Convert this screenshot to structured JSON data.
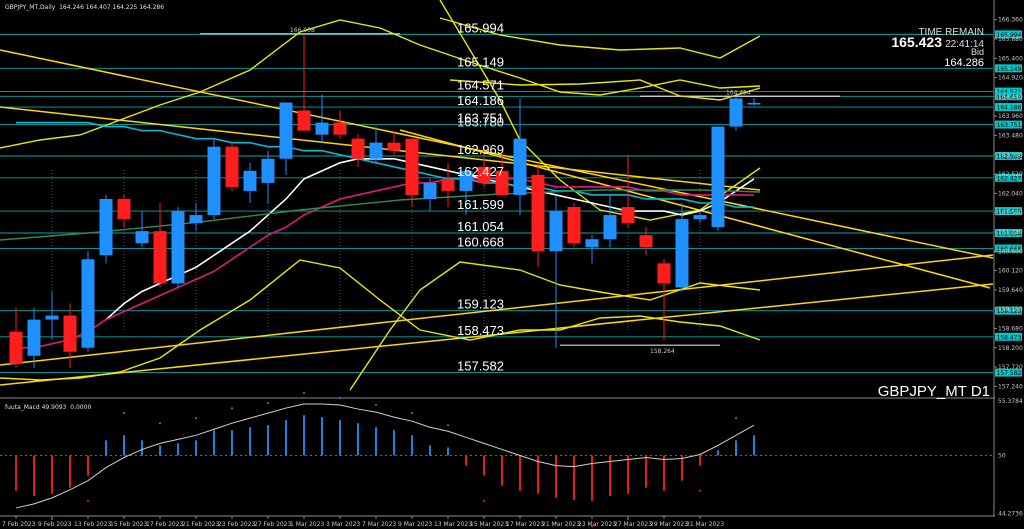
{
  "header": {
    "symbol_line": "GBPJPY_MT,Daily",
    "ohlc": "164.246 164.407 164.225 164.286",
    "indicator_name": "fuuta_Macd 49.9093",
    "indicator_val": "0.0000"
  },
  "info_panel": {
    "time_remain_label": "TIME REMAIN",
    "time_remain_value": "22:41:14",
    "big_price": "165.423",
    "bid_label": "Bid",
    "bid_value": "164.286"
  },
  "symbol_label": "GBPJPY_MT D1",
  "colors": {
    "bull": "#1e90ff",
    "bear": "#ff1e1e",
    "level_line": "#00c8c8",
    "trend": "#ffd700",
    "bollinger": "#e8e800",
    "ma_white": "#ffffff",
    "ma_pink": "#e0197f",
    "ma_cyan": "#00bcd4",
    "ma_green": "#2e8b57"
  },
  "chart_data": {
    "type": "candlestick",
    "price_axis_ticks": [
      "166.360",
      "165.880",
      "165.400",
      "164.920",
      "164.440",
      "163.960",
      "163.480",
      "163.000",
      "162.520",
      "162.040",
      "161.560",
      "161.080",
      "160.600",
      "160.120",
      "159.640",
      "159.160",
      "158.680",
      "158.200",
      "157.720",
      "157.240"
    ],
    "price_range": [
      157.0,
      166.6
    ],
    "axis_tags": [
      "165.994",
      "165.149",
      "164.571",
      "164.454",
      "164.186",
      "163.751",
      "162.969",
      "162.427",
      "161.599",
      "161.054",
      "160.668",
      "159.123",
      "158.473",
      "157.582"
    ],
    "level_labels": [
      {
        "label": "165.994",
        "price": 165.994
      },
      {
        "label": "165.149",
        "price": 165.149
      },
      {
        "label": "164.571",
        "price": 164.571
      },
      {
        "label": "164.186",
        "price": 164.186
      },
      {
        "label": "163.751",
        "price": 163.751
      },
      {
        "label": "162.969",
        "price": 162.969
      },
      {
        "label": "162.427",
        "price": 162.427
      },
      {
        "label": "161.599",
        "price": 161.599
      },
      {
        "label": "161.054",
        "price": 161.054
      },
      {
        "label": "160.668",
        "price": 160.668
      },
      {
        "label": "159.123",
        "price": 159.123
      },
      {
        "label": "158.473",
        "price": 158.473
      },
      {
        "label": "157.582",
        "price": 157.582
      }
    ],
    "level_extra_label": "163.780",
    "annotations": [
      {
        "label": "166.008",
        "price": 166.008
      },
      {
        "label": "164.454",
        "price": 164.454
      },
      {
        "label": "158.264",
        "price": 158.264
      }
    ],
    "date_labels": [
      "7 Feb 2023",
      "9 Feb 2023",
      "13 Feb 2023",
      "15 Feb 2023",
      "17 Feb 2023",
      "21 Feb 2023",
      "23 Feb 2023",
      "27 Feb 2023",
      "1 Mar 2023",
      "3 Mar 2023",
      "7 Mar 2023",
      "9 Mar 2023",
      "13 Mar 2023",
      "15 Mar 2023",
      "17 Mar 2023",
      "21 Mar 2023",
      "23 Mar 2023",
      "27 Mar 2023",
      "29 Mar 2023",
      "31 Mar 2023"
    ],
    "candles": [
      {
        "o": 158.6,
        "h": 159.2,
        "l": 157.7,
        "c": 157.8
      },
      {
        "o": 158.0,
        "h": 159.2,
        "l": 157.7,
        "c": 158.9
      },
      {
        "o": 158.9,
        "h": 159.6,
        "l": 158.4,
        "c": 159.0
      },
      {
        "o": 159.0,
        "h": 159.3,
        "l": 157.7,
        "c": 158.1
      },
      {
        "o": 158.2,
        "h": 160.6,
        "l": 158.1,
        "c": 160.4
      },
      {
        "o": 160.5,
        "h": 162.0,
        "l": 160.3,
        "c": 161.9
      },
      {
        "o": 161.9,
        "h": 162.0,
        "l": 161.2,
        "c": 161.4
      },
      {
        "o": 160.8,
        "h": 161.6,
        "l": 160.7,
        "c": 161.1
      },
      {
        "o": 161.1,
        "h": 161.8,
        "l": 159.7,
        "c": 159.8
      },
      {
        "o": 159.8,
        "h": 161.7,
        "l": 159.7,
        "c": 161.6
      },
      {
        "o": 161.3,
        "h": 161.8,
        "l": 161.1,
        "c": 161.5
      },
      {
        "o": 161.5,
        "h": 163.4,
        "l": 161.4,
        "c": 163.2
      },
      {
        "o": 163.2,
        "h": 163.3,
        "l": 162.1,
        "c": 162.2
      },
      {
        "o": 162.1,
        "h": 162.8,
        "l": 161.8,
        "c": 162.6
      },
      {
        "o": 162.3,
        "h": 163.1,
        "l": 161.8,
        "c": 162.9
      },
      {
        "o": 162.9,
        "h": 164.3,
        "l": 162.5,
        "c": 164.3
      },
      {
        "o": 164.1,
        "h": 166.0,
        "l": 163.6,
        "c": 163.6
      },
      {
        "o": 163.5,
        "h": 164.5,
        "l": 163.3,
        "c": 163.8
      },
      {
        "o": 163.8,
        "h": 164.1,
        "l": 163.4,
        "c": 163.5
      },
      {
        "o": 163.4,
        "h": 163.5,
        "l": 162.7,
        "c": 162.9
      },
      {
        "o": 162.9,
        "h": 163.7,
        "l": 162.8,
        "c": 163.3
      },
      {
        "o": 163.3,
        "h": 163.6,
        "l": 163.0,
        "c": 163.1
      },
      {
        "o": 163.4,
        "h": 163.4,
        "l": 161.7,
        "c": 162.0
      },
      {
        "o": 161.9,
        "h": 162.4,
        "l": 161.6,
        "c": 162.3
      },
      {
        "o": 162.4,
        "h": 162.8,
        "l": 161.7,
        "c": 162.1
      },
      {
        "o": 162.1,
        "h": 162.7,
        "l": 161.5,
        "c": 162.6
      },
      {
        "o": 162.7,
        "h": 163.2,
        "l": 162.2,
        "c": 162.3
      },
      {
        "o": 162.6,
        "h": 163.0,
        "l": 162.0,
        "c": 162.0
      },
      {
        "o": 162.0,
        "h": 164.4,
        "l": 161.5,
        "c": 163.4
      },
      {
        "o": 162.5,
        "h": 162.8,
        "l": 160.2,
        "c": 160.6
      },
      {
        "o": 160.6,
        "h": 162.0,
        "l": 158.2,
        "c": 161.6
      },
      {
        "o": 161.7,
        "h": 161.8,
        "l": 160.7,
        "c": 160.8
      },
      {
        "o": 160.7,
        "h": 161.0,
        "l": 160.3,
        "c": 160.9
      },
      {
        "o": 160.9,
        "h": 162.0,
        "l": 160.7,
        "c": 161.5
      },
      {
        "o": 161.7,
        "h": 163.0,
        "l": 161.2,
        "c": 161.3
      },
      {
        "o": 161.0,
        "h": 161.2,
        "l": 160.5,
        "c": 160.7
      },
      {
        "o": 160.3,
        "h": 160.4,
        "l": 158.4,
        "c": 159.8
      },
      {
        "o": 159.7,
        "h": 161.8,
        "l": 159.6,
        "c": 161.4
      },
      {
        "o": 161.4,
        "h": 161.6,
        "l": 161.3,
        "c": 161.5
      },
      {
        "o": 161.2,
        "h": 163.7,
        "l": 161.1,
        "c": 163.7
      },
      {
        "o": 163.7,
        "h": 164.45,
        "l": 163.6,
        "c": 164.4
      },
      {
        "o": 164.25,
        "h": 164.41,
        "l": 164.23,
        "c": 164.29
      }
    ],
    "moving_averages": [
      {
        "name": "white",
        "values": [
          null,
          null,
          null,
          null,
          null,
          158.9,
          159.3,
          159.6,
          159.8,
          160.0,
          160.2,
          160.5,
          160.8,
          161.1,
          161.5,
          161.9,
          162.4,
          162.6,
          162.8,
          162.9,
          162.9,
          162.9,
          162.8,
          162.7,
          162.6,
          162.5,
          162.4,
          162.3,
          162.2,
          162.1,
          162.0,
          161.9,
          161.8,
          161.7,
          161.6,
          161.6,
          161.6,
          161.5,
          161.6,
          161.8,
          162.1,
          162.4
        ]
      },
      {
        "name": "pink",
        "values": [
          158.2,
          158.2,
          158.3,
          158.4,
          158.6,
          158.9,
          159.1,
          159.3,
          159.5,
          159.7,
          159.9,
          160.1,
          160.4,
          160.7,
          161.0,
          161.2,
          161.5,
          161.7,
          161.9,
          162.0,
          162.1,
          162.2,
          162.3,
          162.3,
          162.4,
          162.4,
          162.4,
          162.4,
          162.4,
          162.3,
          162.2,
          162.2,
          162.2,
          162.2,
          162.2,
          162.1,
          162.1,
          162.0,
          162.0,
          162.0,
          162.0,
          162.0
        ]
      },
      {
        "name": "cyan",
        "values": [
          163.8,
          163.8,
          163.8,
          163.8,
          163.8,
          163.7,
          163.7,
          163.6,
          163.6,
          163.5,
          163.4,
          163.4,
          163.3,
          163.3,
          163.2,
          163.2,
          163.1,
          163.1,
          163.0,
          162.9,
          162.8,
          162.7,
          162.6,
          162.5,
          162.4,
          162.4,
          162.3,
          162.3,
          162.2,
          162.2,
          162.1,
          162.1,
          162.0,
          162.0,
          162.0,
          161.9,
          161.9,
          161.9,
          161.8,
          161.8,
          161.7,
          161.7
        ]
      }
    ],
    "macd": {
      "range": [
        44.2,
        55.4
      ],
      "axis_ticks": [
        "55.3784",
        "50",
        "44.2736"
      ],
      "zero": 50,
      "histogram": [
        -3.5,
        -4.0,
        -3.8,
        -3.2,
        -2.0,
        1.5,
        2.0,
        1.5,
        1.0,
        1.2,
        1.5,
        2.5,
        2.5,
        2.8,
        3.0,
        3.5,
        4.0,
        3.8,
        3.5,
        3.2,
        2.8,
        2.5,
        2.0,
        1.0,
        0.8,
        -1.0,
        -2.0,
        -3.0,
        -3.5,
        -3.8,
        -4.2,
        -4.4,
        -4.5,
        -4.0,
        -3.8,
        -3.2,
        -3.5,
        -2.5,
        -1.0,
        0.5,
        1.5,
        2.0
      ],
      "signal": [
        44.8,
        45.2,
        45.8,
        46.6,
        47.5,
        48.8,
        49.8,
        50.6,
        51.2,
        51.6,
        52.0,
        52.6,
        53.2,
        53.7,
        54.2,
        54.7,
        55.1,
        55.1,
        55.0,
        54.6,
        54.3,
        53.8,
        53.4,
        52.8,
        52.4,
        51.8,
        51.2,
        50.6,
        50.0,
        49.4,
        49.0,
        48.9,
        49.2,
        49.4,
        49.6,
        49.8,
        49.6,
        49.7,
        50.1,
        51.0,
        52.0,
        53.0
      ]
    }
  }
}
